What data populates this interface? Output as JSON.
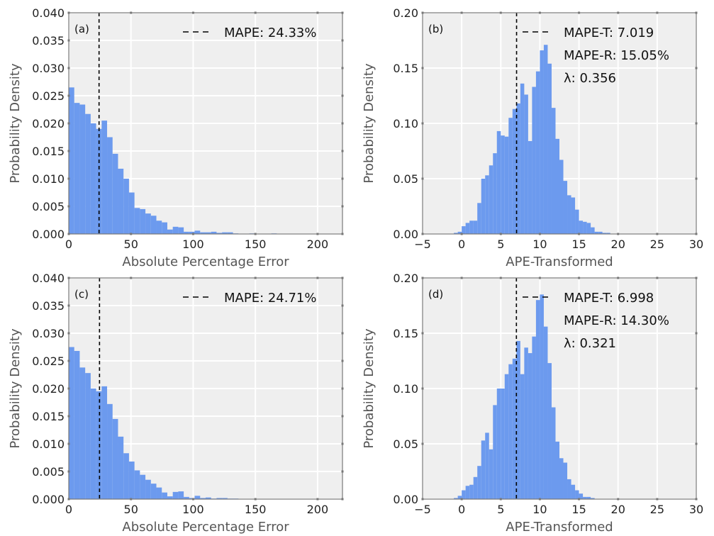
{
  "colors": {
    "bar": "#6495ed",
    "background": "#efefef",
    "grid": "#ffffff",
    "frame": "#777777",
    "mean_line": "#000000"
  },
  "chart_data": [
    {
      "type": "bar",
      "panel_label": "(a)",
      "xlabel": "Absolute Percentage Error",
      "ylabel": "Probability Density",
      "xlim": [
        0,
        220
      ],
      "ylim": [
        0,
        0.04
      ],
      "xticks": [
        "0",
        "50",
        "100",
        "150",
        "200"
      ],
      "yticks": [
        "0.000",
        "0.005",
        "0.010",
        "0.015",
        "0.020",
        "0.025",
        "0.030",
        "0.035",
        "0.040"
      ],
      "grid": true,
      "bin_width": 4.4,
      "values": [
        0.0265,
        0.0237,
        0.0234,
        0.0217,
        0.02,
        0.019,
        0.0205,
        0.0175,
        0.0145,
        0.0118,
        0.01,
        0.0075,
        0.0047,
        0.0045,
        0.0037,
        0.0033,
        0.0024,
        0.0021,
        0.0008,
        0.0013,
        0.0012,
        0.0004,
        0.0004,
        0.0006,
        0.0003,
        0.0003,
        0.0004,
        0.0002,
        0.0003,
        0.0003,
        0.0001,
        0.0,
        0.0,
        0.0001,
        0.0,
        0.0,
        0.0,
        0.0001,
        0.0,
        0.0,
        0.0,
        0.0,
        0.0,
        0.0,
        0.0,
        0.0,
        0.0,
        0.0,
        0.0,
        0.0
      ],
      "vline": 24.33,
      "legend_position": "top-right",
      "legend": [
        "MAPE: 24.33%"
      ]
    },
    {
      "type": "bar",
      "panel_label": "(b)",
      "xlabel": "APE-Transformed",
      "ylabel": "Probability Density",
      "xlim": [
        -5,
        30
      ],
      "ylim": [
        0,
        0.2
      ],
      "xticks": [
        "−5",
        "0",
        "5",
        "10",
        "15",
        "20",
        "25",
        "30"
      ],
      "yticks": [
        "0.00",
        "0.05",
        "0.10",
        "0.15",
        "0.20"
      ],
      "grid": true,
      "bin_start": -1,
      "bin_width": 0.5,
      "values": [
        0.001,
        0.002,
        0.007,
        0.01,
        0.012,
        0.012,
        0.028,
        0.05,
        0.053,
        0.062,
        0.073,
        0.093,
        0.089,
        0.088,
        0.105,
        0.113,
        0.118,
        0.136,
        0.126,
        0.084,
        0.133,
        0.147,
        0.166,
        0.171,
        0.154,
        0.114,
        0.086,
        0.067,
        0.048,
        0.035,
        0.033,
        0.022,
        0.012,
        0.011,
        0.01,
        0.006,
        0.002,
        0.002,
        0.001,
        0.001
      ],
      "vline": 7.019,
      "legend_position": "top-right",
      "legend": [
        "MAPE-T: 7.019",
        "MAPE-R: 15.05%",
        "λ: 0.356"
      ]
    },
    {
      "type": "bar",
      "panel_label": "(c)",
      "xlabel": "Absolute Percentage Error",
      "ylabel": "Probability Density",
      "xlim": [
        0,
        220
      ],
      "ylim": [
        0,
        0.04
      ],
      "xticks": [
        "0",
        "50",
        "100",
        "150",
        "200"
      ],
      "yticks": [
        "0.000",
        "0.005",
        "0.010",
        "0.015",
        "0.020",
        "0.025",
        "0.030",
        "0.035",
        "0.040"
      ],
      "grid": true,
      "bin_width": 4.4,
      "values": [
        0.0275,
        0.0268,
        0.0238,
        0.0228,
        0.02,
        0.0195,
        0.0204,
        0.0172,
        0.0145,
        0.0113,
        0.0083,
        0.0068,
        0.0052,
        0.0044,
        0.0035,
        0.0028,
        0.0021,
        0.0012,
        0.0005,
        0.0013,
        0.0014,
        0.0004,
        0.0002,
        0.0006,
        0.0002,
        0.0003,
        0.0001,
        0.0002,
        0.0002,
        0.0001,
        0.0001,
        0.0,
        0.0,
        0.0,
        0.0,
        0.0,
        0.0,
        0.0,
        0.0,
        0.0,
        0.0,
        0.0,
        0.0,
        0.0,
        0.0,
        0.0,
        0.0,
        0.0,
        0.0,
        0.0
      ],
      "vline": 24.71,
      "legend_position": "top-right",
      "legend": [
        "MAPE: 24.71%"
      ]
    },
    {
      "type": "bar",
      "panel_label": "(d)",
      "xlabel": "APE-Transformed",
      "ylabel": "Probability Density",
      "xlim": [
        -5,
        30
      ],
      "ylim": [
        0,
        0.2
      ],
      "xticks": [
        "−5",
        "0",
        "5",
        "10",
        "15",
        "20",
        "25",
        "30"
      ],
      "yticks": [
        "0.00",
        "0.05",
        "0.10",
        "0.15",
        "0.20"
      ],
      "grid": true,
      "bin_start": -1,
      "bin_width": 0.5,
      "values": [
        0.001,
        0.003,
        0.008,
        0.012,
        0.013,
        0.02,
        0.03,
        0.053,
        0.06,
        0.045,
        0.085,
        0.1,
        0.1,
        0.113,
        0.122,
        0.127,
        0.143,
        0.113,
        0.137,
        0.132,
        0.147,
        0.18,
        0.185,
        0.156,
        0.123,
        0.083,
        0.052,
        0.037,
        0.033,
        0.018,
        0.013,
        0.008,
        0.005,
        0.002,
        0.002,
        0.001,
        0.0,
        0.0,
        0.0,
        0.0
      ],
      "vline": 6.998,
      "legend_position": "top-right",
      "legend": [
        "MAPE-T: 6.998",
        "MAPE-R: 14.30%",
        "λ: 0.321"
      ]
    }
  ]
}
